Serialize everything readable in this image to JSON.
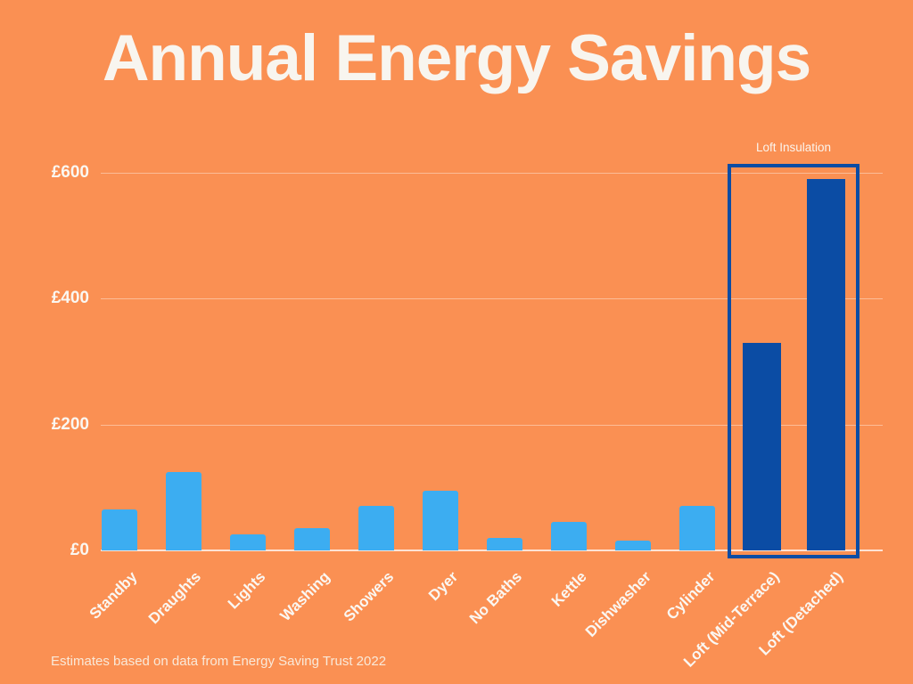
{
  "page": {
    "background_color": "#FA9053",
    "text_color": "#F8F5EF"
  },
  "chart_data": {
    "type": "bar",
    "title": "Annual Energy Savings",
    "categories": [
      "Standby",
      "Draughts",
      "Lights",
      "Washing",
      "Showers",
      "Dyer",
      "No Baths",
      "Kettle",
      "Dishwasher",
      "Cylinder",
      "Loft (Mid-Terrace)",
      "Loft (Detached)"
    ],
    "series": [
      {
        "name": "Annual energy savings (GBP)",
        "values": [
          65,
          125,
          25,
          35,
          70,
          95,
          20,
          45,
          15,
          70,
          330,
          590
        ]
      }
    ],
    "currency": "£",
    "ylim": [
      0,
      600
    ],
    "yticks": [
      {
        "value": 0,
        "label": "£0"
      },
      {
        "value": 200,
        "label": "£200"
      },
      {
        "value": 400,
        "label": "£400"
      },
      {
        "value": 600,
        "label": "£600"
      }
    ],
    "grid": "horizontal",
    "legend_position": "none",
    "bar_color_default": "#3CADF1",
    "bar_color_highlight": "#0B4CA4",
    "highlight": {
      "label": "Loft Insulation",
      "categories": [
        "Loft (Mid-Terrace)",
        "Loft (Detached)"
      ],
      "box_color": "#0B4CA4"
    },
    "note": "Estimates based on data from Energy Saving Trust 2022"
  }
}
